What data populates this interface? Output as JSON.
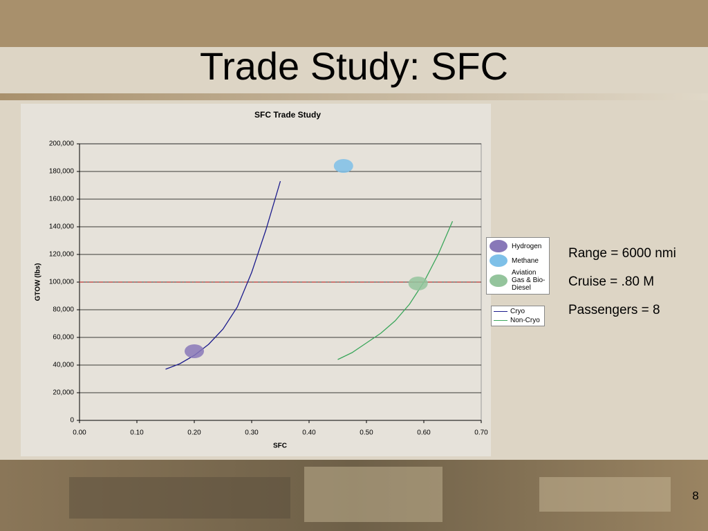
{
  "slide": {
    "title": "Trade Study: SFC",
    "notes": [
      "Range = 6000 nmi",
      "Cruise = .80 M",
      "Passengers = 8"
    ],
    "page_number": "8"
  },
  "chart_data": {
    "type": "line",
    "title": "SFC Trade Study",
    "x_label": "SFC",
    "y_label": "GTOW (lbs)",
    "xlim": [
      0,
      0.7
    ],
    "ylim": [
      0,
      200000
    ],
    "xticks": [
      {
        "value": 0,
        "label": "0.00"
      },
      {
        "value": 0.1,
        "label": "0.10"
      },
      {
        "value": 0.2,
        "label": "0.20"
      },
      {
        "value": 0.3,
        "label": "0.30"
      },
      {
        "value": 0.4,
        "label": "0.40"
      },
      {
        "value": 0.5,
        "label": "0.50"
      },
      {
        "value": 0.6,
        "label": "0.60"
      },
      {
        "value": 0.7,
        "label": "0.70"
      }
    ],
    "yticks": [
      0,
      {
        "value": 20000,
        "label": "20,000"
      },
      {
        "value": 40000,
        "label": "40,000"
      },
      {
        "value": 60000,
        "label": "60,000"
      },
      {
        "value": 80000,
        "label": "80,000"
      },
      {
        "value": 100000,
        "label": "100,000"
      },
      {
        "value": 120000,
        "label": "120,000"
      },
      {
        "value": 140000,
        "label": "140,000"
      },
      {
        "value": 160000,
        "label": "160,000"
      },
      {
        "value": 180000,
        "label": "180,000"
      },
      {
        "value": 200000,
        "label": "200,000"
      }
    ],
    "grid": true,
    "series": [
      {
        "name": "Cryo",
        "color": "#1a1a8c",
        "x": [
          0.15,
          0.175,
          0.2,
          0.225,
          0.25,
          0.275,
          0.3,
          0.325,
          0.35
        ],
        "values": [
          37000,
          41000,
          47000,
          55000,
          66000,
          82000,
          107000,
          138000,
          173000
        ]
      },
      {
        "name": "Non-Cryo",
        "color": "#3aa65a",
        "x": [
          0.45,
          0.475,
          0.5,
          0.525,
          0.55,
          0.575,
          0.6,
          0.625,
          0.65
        ],
        "values": [
          44000,
          49000,
          56000,
          63000,
          72000,
          84000,
          100000,
          120000,
          144000
        ]
      }
    ],
    "markers": [
      {
        "name": "Hydrogen",
        "color": "#8878b8",
        "x": 0.2,
        "value": 50000
      },
      {
        "name": "Methane",
        "color": "#7ec0e8",
        "x": 0.46,
        "value": 184000
      },
      {
        "name": "Aviation Gas & Bio-Diesel",
        "color": "#94c49c",
        "x": 0.59,
        "value": 99000
      }
    ],
    "reference_line": {
      "value": 100000,
      "color": "#c0504d"
    }
  }
}
